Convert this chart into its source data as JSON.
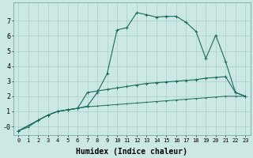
{
  "xlabel": "Humidex (Indice chaleur)",
  "bg_color": "#cce8e5",
  "grid_color": "#aacfcc",
  "line_color": "#1a6b5a",
  "xlim": [
    -0.5,
    23.5
  ],
  "ylim": [
    -0.6,
    8.2
  ],
  "xticks": [
    0,
    1,
    2,
    3,
    4,
    5,
    6,
    7,
    8,
    9,
    10,
    11,
    12,
    13,
    14,
    15,
    16,
    17,
    18,
    19,
    20,
    21,
    22,
    23
  ],
  "yticks": [
    0,
    1,
    2,
    3,
    4,
    5,
    6,
    7
  ],
  "ytick_labels": [
    "-0",
    "1",
    "2",
    "3",
    "4",
    "5",
    "6",
    "7"
  ],
  "curve1_x": [
    0,
    1,
    2,
    3,
    4,
    5,
    6,
    7,
    8,
    9,
    10,
    11,
    12,
    13,
    14,
    15,
    16,
    17,
    18,
    19,
    20,
    21,
    22,
    23
  ],
  "curve1_y": [
    -0.3,
    -0.05,
    0.4,
    0.75,
    1.0,
    1.1,
    1.2,
    1.3,
    1.35,
    1.4,
    1.45,
    1.5,
    1.55,
    1.6,
    1.65,
    1.7,
    1.75,
    1.8,
    1.85,
    1.9,
    1.95,
    2.0,
    2.0,
    2.0
  ],
  "curve2_x": [
    0,
    2,
    3,
    4,
    5,
    6,
    7,
    8,
    9,
    10,
    11,
    12,
    13,
    14,
    15,
    16,
    17,
    18,
    19,
    20,
    21,
    22,
    23
  ],
  "curve2_y": [
    -0.3,
    0.4,
    0.75,
    1.0,
    1.1,
    1.2,
    1.35,
    2.25,
    3.5,
    6.4,
    6.55,
    7.55,
    7.4,
    7.25,
    7.3,
    7.3,
    6.9,
    6.3,
    4.5,
    6.05,
    4.3,
    2.25,
    2.0
  ],
  "curve3_x": [
    0,
    2,
    3,
    4,
    5,
    6,
    7,
    8,
    9,
    10,
    11,
    12,
    13,
    14,
    15,
    16,
    17,
    18,
    19,
    20,
    21,
    22,
    23
  ],
  "curve3_y": [
    -0.3,
    0.4,
    0.75,
    1.0,
    1.1,
    1.2,
    2.25,
    2.35,
    2.45,
    2.55,
    2.65,
    2.75,
    2.85,
    2.9,
    2.95,
    3.0,
    3.05,
    3.1,
    3.2,
    3.25,
    3.3,
    2.25,
    2.0
  ],
  "font_size_label": 7,
  "font_size_tick": 6
}
